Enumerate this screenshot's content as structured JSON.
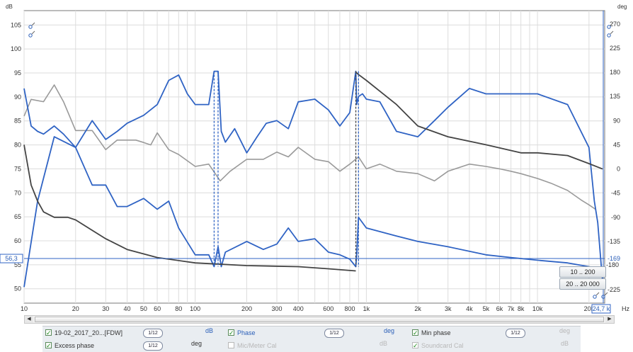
{
  "chart_data": {
    "type": "line",
    "title": "",
    "xlabel": "Hz",
    "left_axis_label": "dB",
    "right_axis_label": "deg",
    "x_scale": "log",
    "xlim": [
      10,
      24700
    ],
    "ylim_left": [
      47,
      108
    ],
    "ylim_right": [
      -250,
      295
    ],
    "grid": true,
    "x_ticks": [
      {
        "v": 10,
        "t": "10"
      },
      {
        "v": 20,
        "t": "20"
      },
      {
        "v": 30,
        "t": "30"
      },
      {
        "v": 40,
        "t": "40"
      },
      {
        "v": 50,
        "t": "50"
      },
      {
        "v": 60,
        "t": "60"
      },
      {
        "v": 80,
        "t": "80"
      },
      {
        "v": 100,
        "t": "100"
      },
      {
        "v": 200,
        "t": "200"
      },
      {
        "v": 300,
        "t": "300"
      },
      {
        "v": 400,
        "t": "400"
      },
      {
        "v": 600,
        "t": "600"
      },
      {
        "v": 800,
        "t": "800"
      },
      {
        "v": 1000,
        "t": "1k"
      },
      {
        "v": 2000,
        "t": "2k"
      },
      {
        "v": 3000,
        "t": "3k"
      },
      {
        "v": 4000,
        "t": "4k"
      },
      {
        "v": 5000,
        "t": "5k"
      },
      {
        "v": 6000,
        "t": "6k"
      },
      {
        "v": 7000,
        "t": "7k"
      },
      {
        "v": 8000,
        "t": "8k"
      },
      {
        "v": 10000,
        "t": "10k"
      },
      {
        "v": 20000,
        "t": "20k"
      }
    ],
    "y_ticks_left": [
      105,
      100,
      95,
      90,
      85,
      80,
      75,
      70,
      65,
      60,
      55,
      50
    ],
    "y_ticks_right": [
      {
        "v": 270,
        "t": "270"
      },
      {
        "v": 225,
        "t": "225"
      },
      {
        "v": 180,
        "t": "180"
      },
      {
        "v": 135,
        "t": "135"
      },
      {
        "v": 90,
        "t": "90"
      },
      {
        "v": 45,
        "t": "45"
      },
      {
        "v": 0,
        "t": "0"
      },
      {
        "v": -45,
        "t": "-45"
      },
      {
        "v": -90,
        "t": "-90"
      },
      {
        "v": -135,
        "t": "-135"
      },
      {
        "v": -225,
        "t": "-225"
      }
    ],
    "cursor": {
      "db": 56.3,
      "db_label": "56,3",
      "deg_label": "-169",
      "deg_label2": "-180",
      "freq_label": "24,7 k"
    },
    "series": [
      {
        "name": "19-02_2017_20...[FDW]",
        "axis": "left",
        "color": "#9a9a9a",
        "x": [
          10,
          11,
          13,
          15,
          17,
          20,
          25,
          30,
          35,
          40,
          45,
          50,
          55,
          60,
          70,
          80,
          100,
          120,
          140,
          160,
          200,
          250,
          300,
          350,
          400,
          500,
          600,
          700,
          800,
          900,
          1000,
          1200,
          1500,
          2000,
          2500,
          3000,
          4000,
          5000,
          6000,
          7000,
          8000,
          10000,
          12000,
          15000,
          18000,
          20000,
          22000
        ],
        "y": [
          86,
          89.5,
          89,
          92.5,
          89,
          83,
          83,
          79,
          81,
          81,
          81,
          80.5,
          80,
          82.5,
          79,
          78,
          75.5,
          76,
          72.5,
          74.5,
          77,
          77,
          78.5,
          77.5,
          79.5,
          77,
          76.5,
          74.5,
          76,
          77.5,
          75,
          76,
          74.5,
          74,
          72.5,
          74.5,
          76,
          75.5,
          75,
          74.5,
          74,
          73,
          72,
          70.5,
          68.5,
          67.5,
          66.5
        ]
      },
      {
        "name": "Phase",
        "axis": "right",
        "color": "#2f63c4",
        "x": [
          10,
          12,
          15,
          20,
          25,
          30,
          35,
          40,
          50,
          60,
          70,
          80,
          90,
          100,
          120,
          129,
          136,
          142,
          150,
          170,
          200,
          230,
          260,
          300,
          350,
          400,
          500,
          600,
          700,
          800,
          868,
          878,
          900,
          950,
          1000,
          1200,
          1500,
          2000,
          2500,
          3000,
          4000,
          5000,
          7000,
          10000,
          15000,
          20000,
          21500,
          22500,
          24000
        ],
        "y": [
          -220,
          -60,
          60,
          40,
          90,
          55,
          70,
          85,
          100,
          120,
          165,
          175,
          140,
          120,
          120,
          182,
          182,
          70,
          50,
          75,
          30,
          60,
          85,
          90,
          75,
          125,
          130,
          110,
          80,
          105,
          182,
          120,
          135,
          140,
          130,
          125,
          70,
          60,
          90,
          115,
          150,
          140,
          140,
          140,
          120,
          40,
          -60,
          -100,
          -210
        ]
      },
      {
        "name": "Min phase",
        "axis": "right",
        "color": "#2f63c4",
        "x": [
          10,
          11,
          12,
          13,
          15,
          17,
          20,
          25,
          30,
          35,
          40,
          50,
          60,
          70,
          80,
          100,
          120,
          129,
          136,
          142,
          150,
          200,
          250,
          300,
          350,
          400,
          500,
          600,
          700,
          800,
          868,
          880,
          900,
          1000,
          1500,
          2000,
          3000,
          5000,
          7000,
          10000,
          15000,
          20000,
          22000
        ],
        "y": [
          150,
          80,
          70,
          65,
          80,
          65,
          40,
          -30,
          -30,
          -70,
          -70,
          -55,
          -75,
          -60,
          -110,
          -160,
          -160,
          -182,
          -145,
          -182,
          -155,
          -135,
          -150,
          -140,
          -110,
          -135,
          -130,
          -155,
          -160,
          -168,
          -182,
          -155,
          -90,
          -110,
          -125,
          -135,
          -145,
          -160,
          -165,
          -170,
          -175,
          -182,
          -185
        ]
      },
      {
        "name": "Excess phase",
        "axis": "right",
        "color": "#444444",
        "x": [
          10,
          11,
          12,
          13,
          15,
          18,
          20,
          30,
          40,
          60,
          100,
          200,
          400,
          600,
          868,
          870,
          900,
          1000,
          1500,
          2000,
          3000,
          5000,
          8000,
          10000,
          15000,
          20000,
          24000
        ],
        "y": [
          45,
          -30,
          -60,
          -80,
          -90,
          -90,
          -95,
          -130,
          -150,
          -165,
          -175,
          -180,
          -182,
          -186,
          -190,
          180,
          176,
          165,
          120,
          80,
          60,
          45,
          30,
          30,
          25,
          10,
          0
        ]
      }
    ],
    "markers": [
      {
        "x": 129,
        "axis": "right",
        "color": "#2f63c4"
      },
      {
        "x": 136,
        "axis": "right",
        "color": "#2f63c4"
      },
      {
        "x": 868,
        "axis": "right",
        "color": "#444444"
      },
      {
        "x": 900,
        "axis": "right",
        "color": "#2f63c4"
      }
    ]
  },
  "range_buttons": [
    "10 .. 200",
    "20 .. 20 000"
  ],
  "x_unit": "Hz",
  "legend": {
    "row1": [
      {
        "label": "19-02_2017_20...[FDW]",
        "checked": true,
        "smoothing": "1/12",
        "unit": "dB",
        "disabled": false
      },
      {
        "label": "Phase",
        "checked": true,
        "smoothing": "1/12",
        "unit": "deg",
        "disabled": false
      },
      {
        "label": "Min phase",
        "checked": true,
        "smoothing": "1/12",
        "unit": "deg",
        "disabled": false
      }
    ],
    "row2": [
      {
        "label": "Excess phase",
        "checked": true,
        "smoothing": "1/12",
        "unit": "deg",
        "disabled": false
      },
      {
        "label": "Mic/Meter Cal",
        "checked": false,
        "smoothing": "",
        "unit": "dB",
        "disabled": true
      },
      {
        "label": "Soundcard Cal",
        "checked": true,
        "smoothing": "",
        "unit": "dB",
        "disabled": true
      }
    ]
  },
  "colors": {
    "grid": "#dcdcdc",
    "axis": "#333333",
    "cursor": "#2f63c4"
  }
}
